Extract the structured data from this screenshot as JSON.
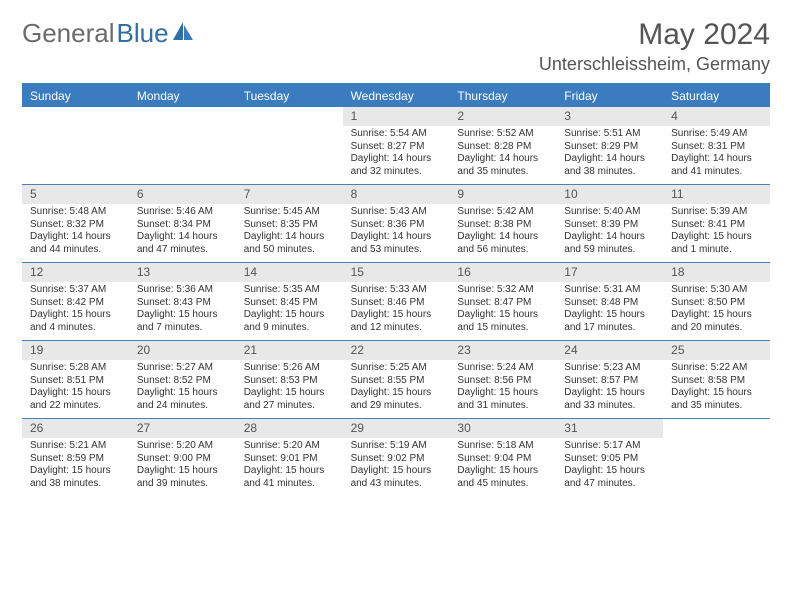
{
  "brand": {
    "part1": "General",
    "part2": "Blue"
  },
  "title": "May 2024",
  "location": "Unterschleissheim, Germany",
  "colors": {
    "header_bg": "#3b7bbf",
    "daynum_bg": "#e8e8e8",
    "rule": "#4b7fb5",
    "text": "#333333",
    "title": "#555555"
  },
  "days_of_week": [
    "Sunday",
    "Monday",
    "Tuesday",
    "Wednesday",
    "Thursday",
    "Friday",
    "Saturday"
  ],
  "weeks": [
    [
      {
        "n": "",
        "sr": "",
        "ss": "",
        "dl": ""
      },
      {
        "n": "",
        "sr": "",
        "ss": "",
        "dl": ""
      },
      {
        "n": "",
        "sr": "",
        "ss": "",
        "dl": ""
      },
      {
        "n": "1",
        "sr": "Sunrise: 5:54 AM",
        "ss": "Sunset: 8:27 PM",
        "dl": "Daylight: 14 hours and 32 minutes."
      },
      {
        "n": "2",
        "sr": "Sunrise: 5:52 AM",
        "ss": "Sunset: 8:28 PM",
        "dl": "Daylight: 14 hours and 35 minutes."
      },
      {
        "n": "3",
        "sr": "Sunrise: 5:51 AM",
        "ss": "Sunset: 8:29 PM",
        "dl": "Daylight: 14 hours and 38 minutes."
      },
      {
        "n": "4",
        "sr": "Sunrise: 5:49 AM",
        "ss": "Sunset: 8:31 PM",
        "dl": "Daylight: 14 hours and 41 minutes."
      }
    ],
    [
      {
        "n": "5",
        "sr": "Sunrise: 5:48 AM",
        "ss": "Sunset: 8:32 PM",
        "dl": "Daylight: 14 hours and 44 minutes."
      },
      {
        "n": "6",
        "sr": "Sunrise: 5:46 AM",
        "ss": "Sunset: 8:34 PM",
        "dl": "Daylight: 14 hours and 47 minutes."
      },
      {
        "n": "7",
        "sr": "Sunrise: 5:45 AM",
        "ss": "Sunset: 8:35 PM",
        "dl": "Daylight: 14 hours and 50 minutes."
      },
      {
        "n": "8",
        "sr": "Sunrise: 5:43 AM",
        "ss": "Sunset: 8:36 PM",
        "dl": "Daylight: 14 hours and 53 minutes."
      },
      {
        "n": "9",
        "sr": "Sunrise: 5:42 AM",
        "ss": "Sunset: 8:38 PM",
        "dl": "Daylight: 14 hours and 56 minutes."
      },
      {
        "n": "10",
        "sr": "Sunrise: 5:40 AM",
        "ss": "Sunset: 8:39 PM",
        "dl": "Daylight: 14 hours and 59 minutes."
      },
      {
        "n": "11",
        "sr": "Sunrise: 5:39 AM",
        "ss": "Sunset: 8:41 PM",
        "dl": "Daylight: 15 hours and 1 minute."
      }
    ],
    [
      {
        "n": "12",
        "sr": "Sunrise: 5:37 AM",
        "ss": "Sunset: 8:42 PM",
        "dl": "Daylight: 15 hours and 4 minutes."
      },
      {
        "n": "13",
        "sr": "Sunrise: 5:36 AM",
        "ss": "Sunset: 8:43 PM",
        "dl": "Daylight: 15 hours and 7 minutes."
      },
      {
        "n": "14",
        "sr": "Sunrise: 5:35 AM",
        "ss": "Sunset: 8:45 PM",
        "dl": "Daylight: 15 hours and 9 minutes."
      },
      {
        "n": "15",
        "sr": "Sunrise: 5:33 AM",
        "ss": "Sunset: 8:46 PM",
        "dl": "Daylight: 15 hours and 12 minutes."
      },
      {
        "n": "16",
        "sr": "Sunrise: 5:32 AM",
        "ss": "Sunset: 8:47 PM",
        "dl": "Daylight: 15 hours and 15 minutes."
      },
      {
        "n": "17",
        "sr": "Sunrise: 5:31 AM",
        "ss": "Sunset: 8:48 PM",
        "dl": "Daylight: 15 hours and 17 minutes."
      },
      {
        "n": "18",
        "sr": "Sunrise: 5:30 AM",
        "ss": "Sunset: 8:50 PM",
        "dl": "Daylight: 15 hours and 20 minutes."
      }
    ],
    [
      {
        "n": "19",
        "sr": "Sunrise: 5:28 AM",
        "ss": "Sunset: 8:51 PM",
        "dl": "Daylight: 15 hours and 22 minutes."
      },
      {
        "n": "20",
        "sr": "Sunrise: 5:27 AM",
        "ss": "Sunset: 8:52 PM",
        "dl": "Daylight: 15 hours and 24 minutes."
      },
      {
        "n": "21",
        "sr": "Sunrise: 5:26 AM",
        "ss": "Sunset: 8:53 PM",
        "dl": "Daylight: 15 hours and 27 minutes."
      },
      {
        "n": "22",
        "sr": "Sunrise: 5:25 AM",
        "ss": "Sunset: 8:55 PM",
        "dl": "Daylight: 15 hours and 29 minutes."
      },
      {
        "n": "23",
        "sr": "Sunrise: 5:24 AM",
        "ss": "Sunset: 8:56 PM",
        "dl": "Daylight: 15 hours and 31 minutes."
      },
      {
        "n": "24",
        "sr": "Sunrise: 5:23 AM",
        "ss": "Sunset: 8:57 PM",
        "dl": "Daylight: 15 hours and 33 minutes."
      },
      {
        "n": "25",
        "sr": "Sunrise: 5:22 AM",
        "ss": "Sunset: 8:58 PM",
        "dl": "Daylight: 15 hours and 35 minutes."
      }
    ],
    [
      {
        "n": "26",
        "sr": "Sunrise: 5:21 AM",
        "ss": "Sunset: 8:59 PM",
        "dl": "Daylight: 15 hours and 38 minutes."
      },
      {
        "n": "27",
        "sr": "Sunrise: 5:20 AM",
        "ss": "Sunset: 9:00 PM",
        "dl": "Daylight: 15 hours and 39 minutes."
      },
      {
        "n": "28",
        "sr": "Sunrise: 5:20 AM",
        "ss": "Sunset: 9:01 PM",
        "dl": "Daylight: 15 hours and 41 minutes."
      },
      {
        "n": "29",
        "sr": "Sunrise: 5:19 AM",
        "ss": "Sunset: 9:02 PM",
        "dl": "Daylight: 15 hours and 43 minutes."
      },
      {
        "n": "30",
        "sr": "Sunrise: 5:18 AM",
        "ss": "Sunset: 9:04 PM",
        "dl": "Daylight: 15 hours and 45 minutes."
      },
      {
        "n": "31",
        "sr": "Sunrise: 5:17 AM",
        "ss": "Sunset: 9:05 PM",
        "dl": "Daylight: 15 hours and 47 minutes."
      },
      {
        "n": "",
        "sr": "",
        "ss": "",
        "dl": ""
      }
    ]
  ]
}
